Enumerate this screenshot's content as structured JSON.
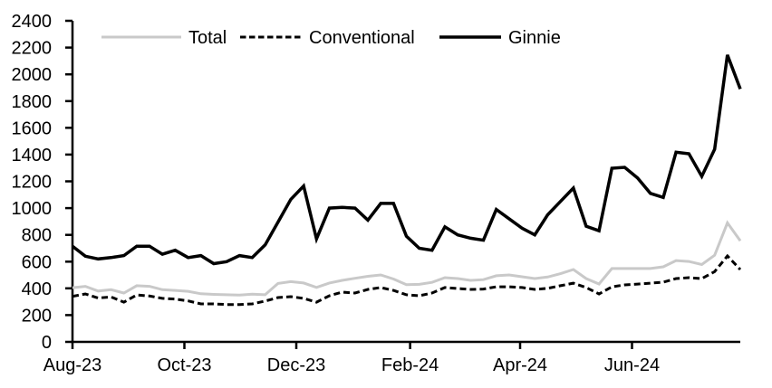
{
  "chart_data": {
    "type": "line",
    "title": "",
    "xlabel": "",
    "ylabel": "",
    "x_unit": "weekly",
    "x_tick_labels": [
      "Aug-23",
      "Oct-23",
      "Dec-23",
      "Feb-24",
      "Apr-24",
      "Jun-24"
    ],
    "y_ticks": [
      0,
      200,
      400,
      600,
      800,
      1000,
      1200,
      1400,
      1600,
      1800,
      2000,
      2200,
      2400
    ],
    "ylim": [
      0,
      2400
    ],
    "grid": false,
    "legend_position": "top",
    "axis_color": "#000000",
    "series": [
      {
        "name": "Total",
        "color": "#c9c9c9",
        "line_style": "solid",
        "values": [
          405,
          415,
          380,
          390,
          365,
          420,
          415,
          390,
          385,
          378,
          360,
          355,
          352,
          350,
          357,
          352,
          437,
          450,
          440,
          407,
          440,
          460,
          475,
          490,
          500,
          470,
          428,
          430,
          445,
          480,
          473,
          460,
          465,
          494,
          500,
          487,
          473,
          485,
          510,
          541,
          473,
          433,
          548,
          548,
          548,
          548,
          561,
          608,
          601,
          578,
          648,
          890,
          755
        ]
      },
      {
        "name": "Conventional",
        "color": "#000000",
        "line_style": "dashed",
        "values": [
          340,
          358,
          328,
          336,
          297,
          351,
          343,
          325,
          320,
          306,
          284,
          284,
          279,
          279,
          284,
          305,
          331,
          338,
          325,
          297,
          345,
          372,
          365,
          392,
          406,
          385,
          352,
          345,
          365,
          406,
          399,
          392,
          395,
          412,
          412,
          406,
          392,
          400,
          420,
          439,
          406,
          358,
          412,
          426,
          432,
          439,
          446,
          473,
          480,
          473,
          525,
          642,
          541
        ]
      },
      {
        "name": "Ginnie",
        "color": "#000000",
        "line_style": "solid",
        "values": [
          715,
          640,
          620,
          630,
          645,
          715,
          715,
          655,
          685,
          630,
          645,
          585,
          600,
          645,
          630,
          725,
          895,
          1065,
          1165,
          770,
          1000,
          1005,
          1000,
          910,
          1035,
          1035,
          790,
          700,
          685,
          860,
          800,
          775,
          760,
          990,
          920,
          850,
          800,
          950,
          1050,
          1150,
          865,
          830,
          1298,
          1305,
          1225,
          1110,
          1080,
          1418,
          1406,
          1237,
          1440,
          2145,
          1890
        ]
      }
    ]
  }
}
